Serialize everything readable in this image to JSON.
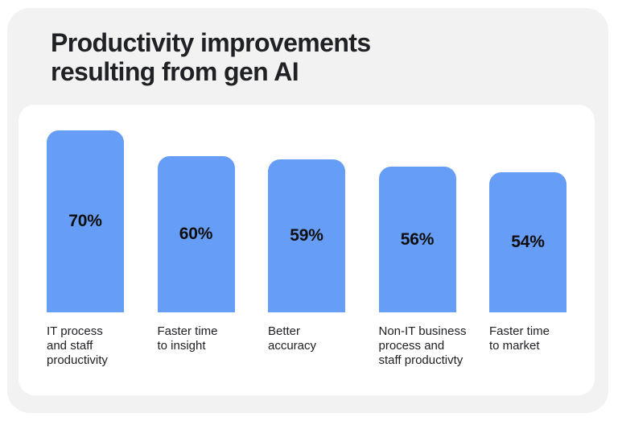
{
  "page": {
    "background": "#ffffff",
    "card_background": "#f2f2f2",
    "panel_background": "#ffffff",
    "text_color": "#202124",
    "accent_color": "#669df6",
    "value_text_color": "#0e0e0e"
  },
  "title_lines": [
    "Productivity improvements",
    "resulting from gen AI"
  ],
  "chart_data": {
    "type": "bar",
    "title": "Productivity improvements resulting from gen AI",
    "categories": [
      "IT process and staff productivity",
      "Faster time to insight",
      "Better accuracy",
      "Non-IT business process and staff productivty",
      "Faster time to market"
    ],
    "category_lines": [
      [
        "IT process",
        "and staff",
        "productivity"
      ],
      [
        "Faster time",
        "to insight"
      ],
      [
        "Better",
        "accuracy"
      ],
      [
        "Non-IT business",
        "process and",
        "staff productivty"
      ],
      [
        "Faster time",
        "to market"
      ]
    ],
    "values": [
      70,
      60,
      59,
      56,
      54
    ],
    "value_labels": [
      "70%",
      "60%",
      "59%",
      "56%",
      "54%"
    ],
    "ylim": [
      0,
      70
    ],
    "bar_color": "#669df6",
    "grid": false,
    "legend": "none",
    "xlabel": "",
    "ylabel": "",
    "value_label_position": "centered-inside-bar"
  }
}
